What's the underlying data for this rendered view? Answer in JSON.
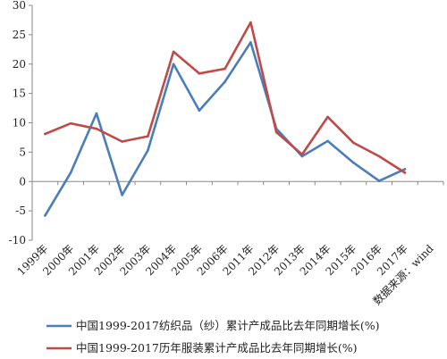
{
  "chart_data": {
    "type": "line",
    "categories": [
      "1999年",
      "2000年",
      "2001年",
      "2002年",
      "2003年",
      "2004年",
      "2005年",
      "2006年",
      "2011年",
      "2012年",
      "2013年",
      "2014年",
      "2015年",
      "2016年",
      "2017年"
    ],
    "series": [
      {
        "name": "中国1999-2017纺织品（纱）累计产成品比去年同期增长(%)",
        "color": "#4a7ebb",
        "values": [
          -5.8,
          1.5,
          11.6,
          -2.3,
          5.3,
          20.0,
          12.1,
          17.0,
          23.7,
          9.0,
          4.3,
          6.9,
          3.2,
          0.1,
          2.1
        ]
      },
      {
        "name": "中国1999-2017历年服装累计产成品比去年同期增长(%)",
        "color": "#be4b48",
        "values": [
          8.1,
          9.9,
          9.0,
          6.8,
          7.7,
          22.1,
          18.4,
          19.2,
          27.1,
          8.4,
          4.6,
          11.0,
          6.6,
          4.3,
          1.5
        ]
      }
    ],
    "yticks": [
      "30",
      "25",
      "20",
      "15",
      "10",
      "5",
      "0",
      "-5",
      "-10"
    ],
    "ylim": [
      -10,
      30
    ],
    "grid": false,
    "legend": "bottom",
    "note": "数据来源：wind",
    "title": "",
    "xlabel": "",
    "ylabel": ""
  }
}
